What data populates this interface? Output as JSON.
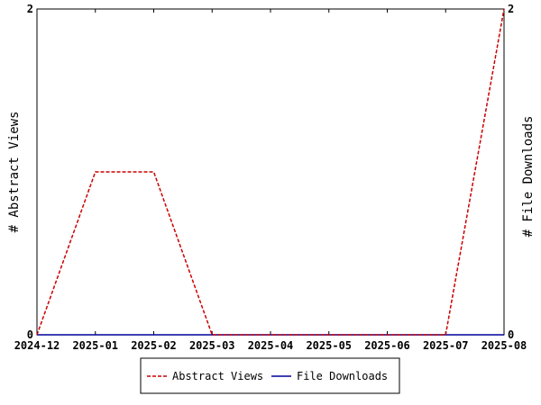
{
  "chart_data": {
    "type": "line",
    "title": "",
    "xlabel": "",
    "ylabel": "# Abstract Views",
    "y2label": "# File Downloads",
    "categories": [
      "2024-12",
      "2025-01",
      "2025-02",
      "2025-03",
      "2025-04",
      "2025-05",
      "2025-06",
      "2025-07",
      "2025-08"
    ],
    "ylim": [
      0,
      2
    ],
    "y2lim": [
      0,
      2
    ],
    "yticks": [
      "0",
      "2"
    ],
    "y2ticks": [
      "0",
      "2"
    ],
    "grid": false,
    "legend_position": "bottom",
    "series": [
      {
        "name": "Abstract Views",
        "axis": "left",
        "style": "dashed",
        "color": "#cc0000",
        "points": [
          [
            "2024-12",
            0
          ],
          [
            "2025-01",
            1
          ],
          [
            "2025-02",
            1
          ],
          [
            "2025-03",
            0
          ],
          [
            "2025-07",
            0
          ],
          [
            "2025-08",
            2
          ]
        ]
      },
      {
        "name": "File Downloads",
        "axis": "right",
        "style": "solid",
        "color": "#000099",
        "points": [
          [
            "2024-12",
            0
          ],
          [
            "2025-01",
            0
          ],
          [
            "2025-02",
            0
          ],
          [
            "2025-03",
            0
          ],
          [
            "2025-04",
            0
          ],
          [
            "2025-05",
            0
          ],
          [
            "2025-06",
            0
          ],
          [
            "2025-07",
            0
          ],
          [
            "2025-08",
            0
          ]
        ]
      }
    ]
  }
}
